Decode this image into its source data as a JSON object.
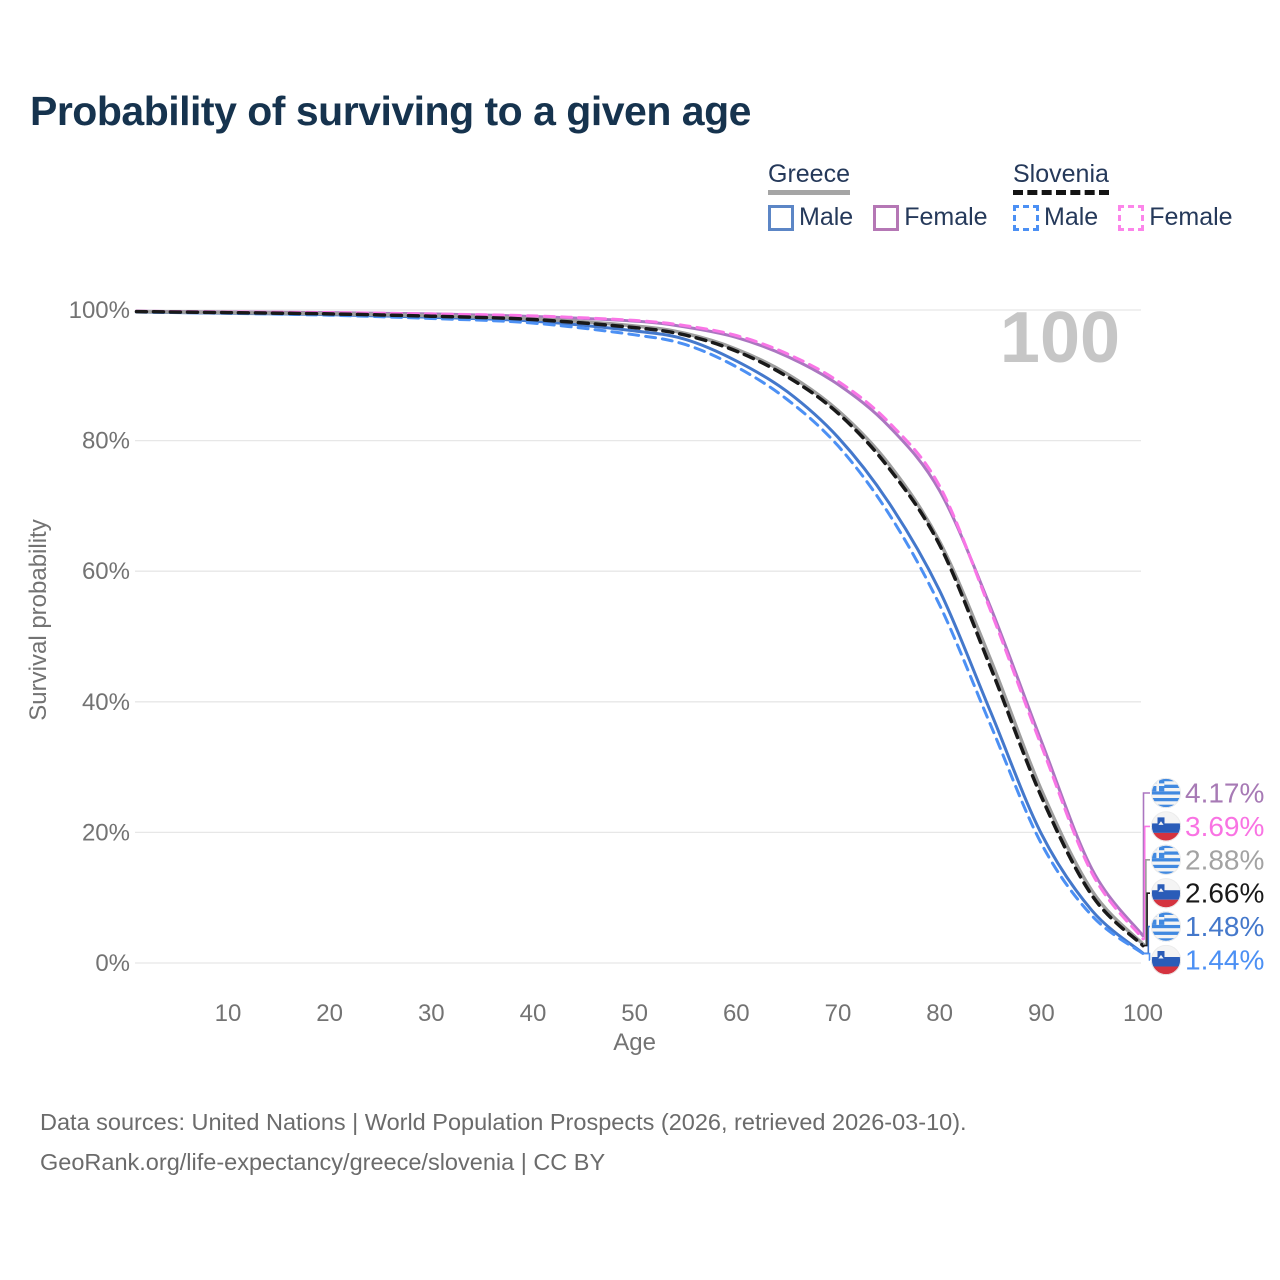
{
  "header": {
    "title": "Probability of surviving to a given age"
  },
  "legend": {
    "groups": [
      {
        "label": "Greece",
        "line_style": "solid",
        "header_line_color": "#a5a5a5",
        "items": [
          {
            "label": "Male",
            "swatch_color": "#5c86c6",
            "swatch_style": "solid"
          },
          {
            "label": "Female",
            "swatch_color": "#b577b5",
            "swatch_style": "solid"
          }
        ]
      },
      {
        "label": "Slovenia",
        "line_style": "dashed",
        "header_line_color": "#141414",
        "items": [
          {
            "label": "Male",
            "swatch_color": "#4c90f4",
            "swatch_style": "dashed"
          },
          {
            "label": "Female",
            "swatch_color": "#fc85ea",
            "swatch_style": "dashed"
          }
        ]
      }
    ]
  },
  "watermark": "100",
  "chart_data": {
    "type": "line",
    "title": "Probability of surviving to a given age",
    "xlabel": "Age",
    "ylabel": "Survival probability",
    "xlim": [
      0,
      100
    ],
    "ylim": [
      0,
      100
    ],
    "grid": true,
    "x_ticks": [
      10,
      20,
      30,
      40,
      50,
      60,
      70,
      80,
      90,
      100
    ],
    "y_ticks": [
      0,
      20,
      40,
      60,
      80,
      100
    ],
    "y_tick_suffix": "%",
    "x": [
      1,
      10,
      20,
      30,
      40,
      50,
      55,
      60,
      65,
      70,
      75,
      80,
      85,
      90,
      95,
      100
    ],
    "series": [
      {
        "name": "Greece Male",
        "country": "Greece",
        "sex": "Male",
        "color": "#4478cb",
        "dash": "solid",
        "width": 3,
        "values": [
          99.7,
          99.5,
          99.3,
          98.9,
          98.3,
          96.8,
          95.5,
          92.2,
          87.5,
          80.5,
          70.5,
          57.0,
          38.5,
          19.8,
          8.0,
          1.48
        ]
      },
      {
        "name": "Greece Female",
        "country": "Greece",
        "sex": "Female",
        "color": "#ab76c0",
        "dash": "solid",
        "width": 3,
        "values": [
          99.8,
          99.7,
          99.6,
          99.4,
          99.0,
          98.3,
          97.4,
          95.8,
          92.9,
          88.6,
          82.2,
          72.3,
          54.5,
          34.0,
          14.3,
          4.17
        ]
      },
      {
        "name": "Greece Both sexes",
        "country": "Greece",
        "sex": "Both",
        "color": "#9e9e9e",
        "dash": "solid",
        "width": 3.5,
        "values": [
          99.75,
          99.6,
          99.45,
          99.15,
          98.65,
          97.55,
          96.4,
          94.0,
          90.2,
          84.6,
          76.4,
          64.5,
          46.5,
          26.5,
          11.0,
          2.88
        ]
      },
      {
        "name": "Slovenia Male",
        "country": "Slovenia",
        "sex": "Male",
        "color": "#4c90f4",
        "dash": "dashed",
        "width": 3,
        "values": [
          99.7,
          99.5,
          99.2,
          98.7,
          98.0,
          96.2,
          94.7,
          91.3,
          86.3,
          79.2,
          68.8,
          54.8,
          36.5,
          18.3,
          7.2,
          1.44
        ]
      },
      {
        "name": "Slovenia Female",
        "country": "Slovenia",
        "sex": "Female",
        "color": "#f975e6",
        "dash": "dashed",
        "width": 3,
        "values": [
          99.8,
          99.7,
          99.6,
          99.4,
          99.1,
          98.4,
          97.6,
          96.1,
          93.3,
          89.1,
          82.8,
          73.0,
          54.0,
          33.3,
          13.7,
          3.69
        ]
      },
      {
        "name": "Slovenia Both sexes",
        "country": "Slovenia",
        "sex": "Both",
        "color": "#191919",
        "dash": "dashed",
        "width": 3.5,
        "values": [
          99.75,
          99.6,
          99.4,
          99.05,
          98.55,
          97.3,
          96.15,
          93.7,
          89.8,
          84.2,
          75.8,
          64.0,
          45.3,
          25.5,
          10.3,
          2.66
        ]
      }
    ],
    "end_labels": [
      {
        "series": "Greece Female",
        "flag": "greece",
        "text": "4.17%",
        "color": "#a77ab5"
      },
      {
        "series": "Slovenia Female",
        "flag": "slovenia",
        "text": "3.69%",
        "color": "#f973e3"
      },
      {
        "series": "Greece Both sexes",
        "flag": "greece",
        "text": "2.88%",
        "color": "#a3a3a3"
      },
      {
        "series": "Slovenia Both sexes",
        "flag": "slovenia",
        "text": "2.66%",
        "color": "#191919"
      },
      {
        "series": "Greece Male",
        "flag": "greece",
        "text": "1.48%",
        "color": "#4478cb"
      },
      {
        "series": "Slovenia Male",
        "flag": "slovenia",
        "text": "1.44%",
        "color": "#4c90f4"
      }
    ],
    "legend_position": "top-right"
  },
  "footer": {
    "line1": "Data sources: United Nations | World Population Prospects (2026, retrieved 2026-03-10).",
    "line2": "GeoRank.org/life-expectancy/greece/slovenia | CC BY"
  }
}
